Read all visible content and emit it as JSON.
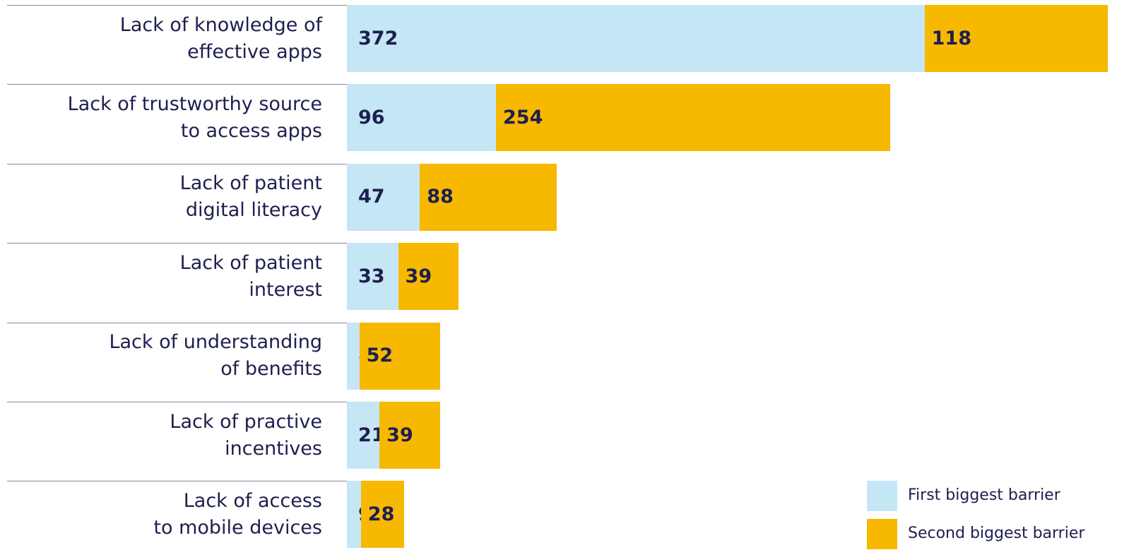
{
  "chart_data": {
    "type": "stacked-bar-horizontal",
    "categories": [
      "Lack of knowledge of\neffective apps",
      "Lack of trustworthy source\nto access apps",
      "Lack of patient\ndigital literacy",
      "Lack of patient\ninterest",
      "Lack of understanding\nof benefits",
      "Lack of practive\nincentives",
      "Lack of access\nto mobile devices"
    ],
    "series": [
      {
        "name": "First biggest barrier",
        "color": "#c5e6f5",
        "values": [
          372,
          96,
          47,
          33,
          8,
          21,
          9
        ]
      },
      {
        "name": "Second biggest barrier",
        "color": "#f7b800",
        "values": [
          118,
          254,
          88,
          39,
          52,
          39,
          28
        ]
      }
    ],
    "legend": "bottom-right"
  }
}
